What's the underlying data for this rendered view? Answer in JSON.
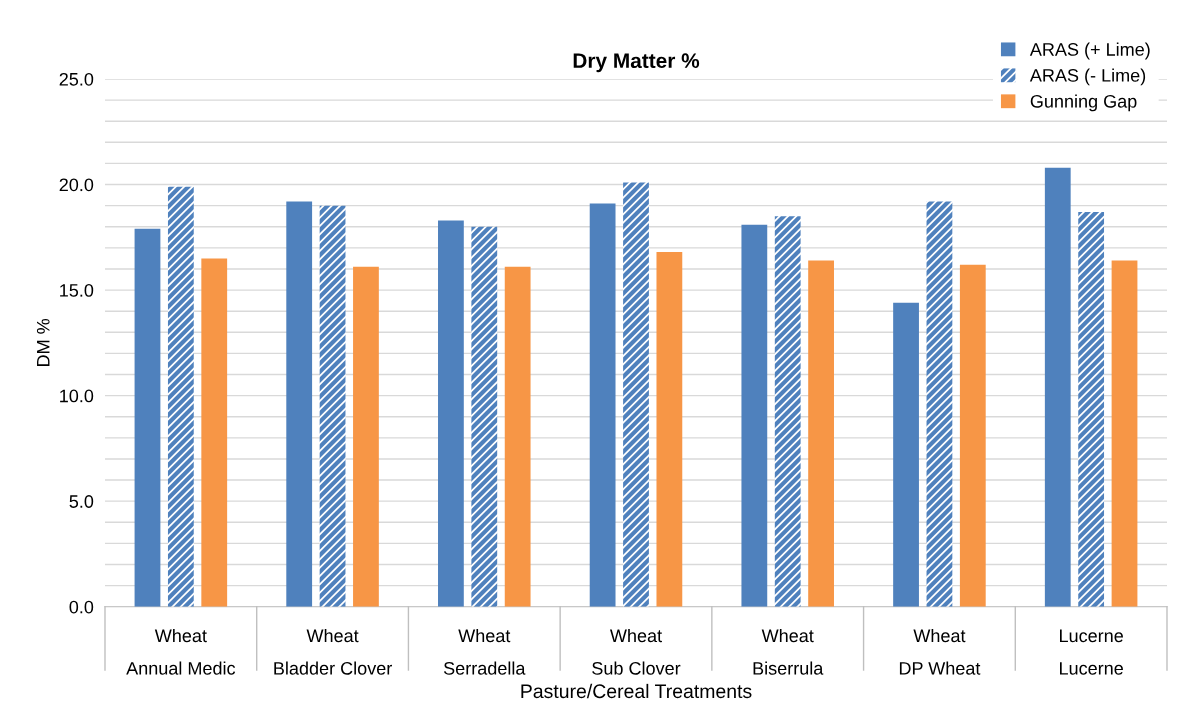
{
  "chart_data": {
    "type": "bar",
    "title": "Dry Matter %",
    "xlabel": "Pasture/Cereal Treatments",
    "ylabel": "DM %",
    "categories": [
      "Wheat\nAnnual Medic",
      "Wheat\nBladder Clover",
      "Wheat\nSerradella",
      "Wheat\nSub Clover",
      "Wheat\nBiserrula",
      "Wheat\nDP Wheat",
      "Lucerne\nLucerne"
    ],
    "series": [
      {
        "name": "ARAS (+ Lime)",
        "color": "#4f81bd",
        "values": [
          17.9,
          19.2,
          18.3,
          19.1,
          18.1,
          14.4,
          20.8
        ]
      },
      {
        "name": "ARAS (- Lime)",
        "color": "#4f81bd",
        "values": [
          19.9,
          19.0,
          18.0,
          20.1,
          18.5,
          19.2,
          18.7
        ]
      },
      {
        "name": "Gunning Gap",
        "color": "#f79646",
        "values": [
          16.5,
          16.1,
          16.1,
          16.8,
          16.4,
          16.2,
          16.4
        ]
      }
    ],
    "ylim": [
      0,
      25
    ],
    "yticks": [
      {
        "value": 0,
        "label": "0.0"
      },
      {
        "value": 1,
        "label": null
      },
      {
        "value": 2,
        "label": null
      },
      {
        "value": 3,
        "label": null
      },
      {
        "value": 4,
        "label": null
      },
      {
        "value": 5,
        "label": "5.0"
      },
      {
        "value": 6,
        "label": null
      },
      {
        "value": 7,
        "label": null
      },
      {
        "value": 8,
        "label": null
      },
      {
        "value": 9,
        "label": null
      },
      {
        "value": 10,
        "label": "10.0"
      },
      {
        "value": 11,
        "label": null
      },
      {
        "value": 12,
        "label": null
      },
      {
        "value": 13,
        "label": null
      },
      {
        "value": 14,
        "label": null
      },
      {
        "value": 15,
        "label": "15.0"
      },
      {
        "value": 16,
        "label": null
      },
      {
        "value": 17,
        "label": null
      },
      {
        "value": 18,
        "label": null
      },
      {
        "value": 19,
        "label": null
      },
      {
        "value": 20,
        "label": "20.0"
      },
      {
        "value": 21,
        "label": null
      },
      {
        "value": 22,
        "label": null
      },
      {
        "value": 23,
        "label": null
      },
      {
        "value": 24,
        "label": null
      },
      {
        "value": 25,
        "label": "25.0"
      }
    ],
    "grid": "y",
    "legend": "top right"
  }
}
